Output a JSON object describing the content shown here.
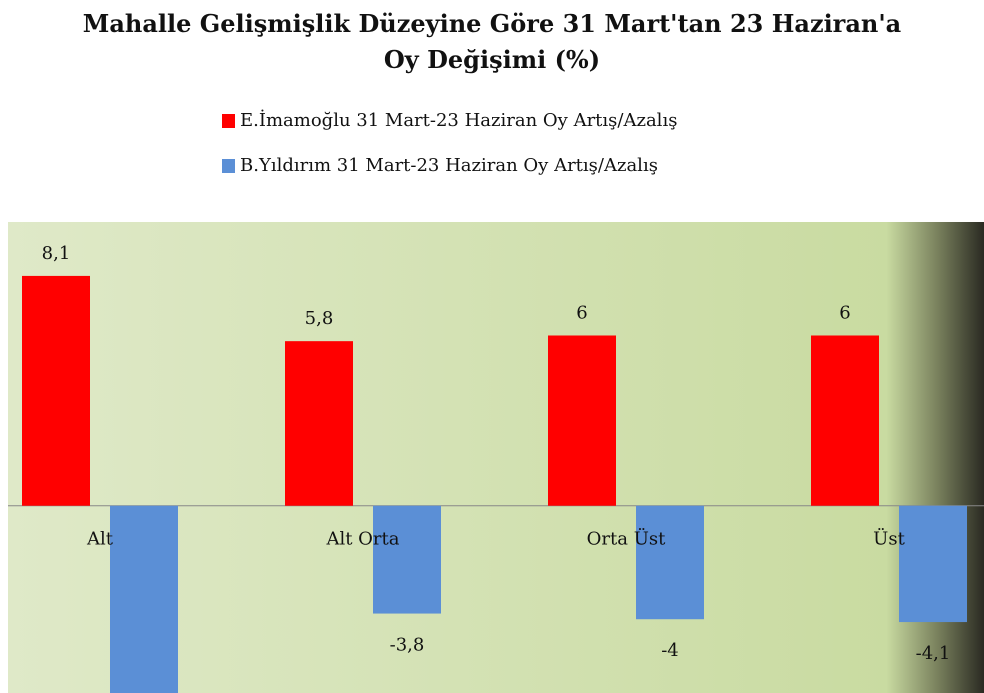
{
  "chart_data": {
    "type": "bar",
    "title": "Mahalle Gelişmişlik Düzeyine Göre 31 Mart'tan 23 Haziran'a Oy Değişimi (%)",
    "categories": [
      "Alt",
      "Alt Orta",
      "Orta Üst",
      "Üst"
    ],
    "series": [
      {
        "name": "E.İmamoğlu 31 Mart-23 Haziran  Oy Artış/Azalış",
        "color": "#ff0000",
        "values": [
          8.1,
          5.8,
          6,
          6
        ],
        "value_labels": [
          "8,1",
          "5,8",
          "6",
          "6"
        ]
      },
      {
        "name": "B.Yıldırım 31 Mart-23 Haziran Oy  Artış/Azalış",
        "color": "#5b8fd6",
        "values": [
          -6.6,
          -3.8,
          -4,
          -4.1
        ],
        "value_labels": [
          null,
          "-3,8",
          "-4",
          "-4,1"
        ]
      }
    ],
    "ylim": [
      -6.6,
      10
    ],
    "legend": "top"
  }
}
